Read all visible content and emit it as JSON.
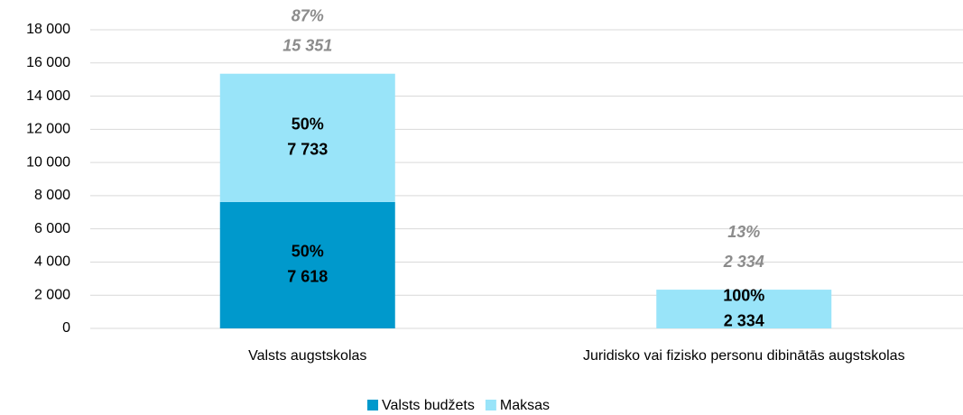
{
  "chart_data": {
    "type": "stacked_bar",
    "categories": [
      "Valsts augstskolas",
      "Juridisko vai fizisko personu dibinātās augstskolas"
    ],
    "series": [
      {
        "name": "Valsts budžets",
        "color": "#0099cc",
        "values": [
          7618,
          null
        ],
        "value_labels": [
          "7 618",
          null
        ],
        "shares": [
          50,
          null
        ],
        "share_labels": [
          "50%",
          null
        ]
      },
      {
        "name": "Maksas",
        "color": "#99e4f9",
        "values": [
          7733,
          2334
        ],
        "value_labels": [
          "7 733",
          "2 334"
        ],
        "shares": [
          50,
          100
        ],
        "share_labels": [
          "50%",
          "100%"
        ]
      }
    ],
    "totals": [
      15351,
      2334
    ],
    "total_labels": [
      "15 351",
      "2 334"
    ],
    "total_shares": [
      87,
      13
    ],
    "total_share_labels": [
      "87%",
      "13%"
    ],
    "ylim": [
      0,
      18000
    ],
    "yticks": [
      0,
      {
        "value": 2000,
        "label": "2 000"
      },
      {
        "value": 4000,
        "label": "4 000"
      },
      {
        "value": 6000,
        "label": "6 000"
      },
      {
        "value": 8000,
        "label": "8 000"
      },
      {
        "value": 10000,
        "label": "10 000"
      },
      {
        "value": 12000,
        "label": "12 000"
      },
      {
        "value": 14000,
        "label": "14 000"
      },
      {
        "value": 16000,
        "label": "16 000"
      },
      {
        "value": 18000,
        "label": "18 000"
      }
    ],
    "grid": true,
    "legend": "bottom"
  }
}
